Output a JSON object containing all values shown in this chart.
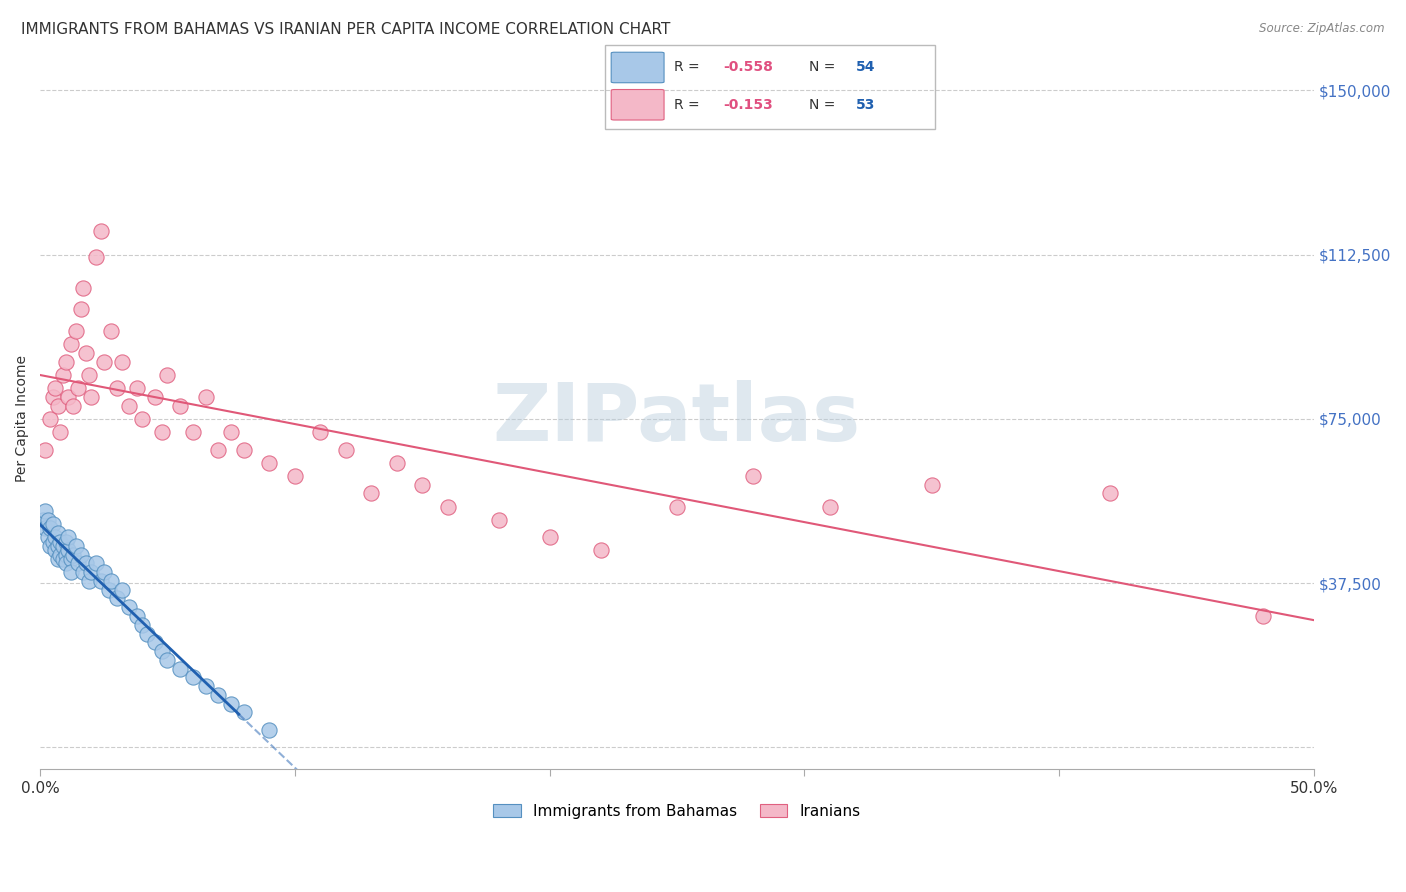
{
  "title": "IMMIGRANTS FROM BAHAMAS VS IRANIAN PER CAPITA INCOME CORRELATION CHART",
  "source": "Source: ZipAtlas.com",
  "ylabel": "Per Capita Income",
  "watermark": "ZIPatlas",
  "xlim": [
    0.0,
    0.5
  ],
  "ylim": [
    -5000,
    155000
  ],
  "yticks": [
    0,
    37500,
    75000,
    112500,
    150000
  ],
  "ytick_labels": [
    "",
    "$37,500",
    "$75,000",
    "$112,500",
    "$150,000"
  ],
  "blue_color": "#a8c8e8",
  "pink_color": "#f4b8c8",
  "blue_edge": "#5590c0",
  "pink_edge": "#e06080",
  "trend_blue": "#2060b0",
  "trend_pink": "#e05878",
  "blue_label": "Immigrants from Bahamas",
  "pink_label": "Iranians",
  "blue_x": [
    0.001,
    0.002,
    0.002,
    0.003,
    0.003,
    0.004,
    0.004,
    0.005,
    0.005,
    0.006,
    0.006,
    0.007,
    0.007,
    0.007,
    0.008,
    0.008,
    0.009,
    0.009,
    0.01,
    0.01,
    0.01,
    0.011,
    0.011,
    0.012,
    0.012,
    0.013,
    0.014,
    0.015,
    0.016,
    0.017,
    0.018,
    0.019,
    0.02,
    0.022,
    0.024,
    0.025,
    0.027,
    0.028,
    0.03,
    0.032,
    0.035,
    0.038,
    0.04,
    0.042,
    0.045,
    0.048,
    0.05,
    0.055,
    0.06,
    0.065,
    0.07,
    0.075,
    0.08,
    0.09
  ],
  "blue_y": [
    52000,
    50000,
    54000,
    48000,
    52000,
    46000,
    50000,
    47000,
    51000,
    45000,
    48000,
    46000,
    49000,
    43000,
    44000,
    47000,
    43000,
    46000,
    44000,
    47000,
    42000,
    45000,
    48000,
    43000,
    40000,
    44000,
    46000,
    42000,
    44000,
    40000,
    42000,
    38000,
    40000,
    42000,
    38000,
    40000,
    36000,
    38000,
    34000,
    36000,
    32000,
    30000,
    28000,
    26000,
    24000,
    22000,
    20000,
    18000,
    16000,
    14000,
    12000,
    10000,
    8000,
    4000
  ],
  "pink_x": [
    0.002,
    0.004,
    0.005,
    0.006,
    0.007,
    0.008,
    0.009,
    0.01,
    0.011,
    0.012,
    0.013,
    0.014,
    0.015,
    0.016,
    0.017,
    0.018,
    0.019,
    0.02,
    0.022,
    0.024,
    0.025,
    0.028,
    0.03,
    0.032,
    0.035,
    0.038,
    0.04,
    0.045,
    0.048,
    0.05,
    0.055,
    0.06,
    0.065,
    0.07,
    0.075,
    0.08,
    0.09,
    0.1,
    0.11,
    0.12,
    0.13,
    0.14,
    0.15,
    0.16,
    0.18,
    0.2,
    0.22,
    0.25,
    0.28,
    0.31,
    0.35,
    0.42,
    0.48
  ],
  "pink_y": [
    68000,
    75000,
    80000,
    82000,
    78000,
    72000,
    85000,
    88000,
    80000,
    92000,
    78000,
    95000,
    82000,
    100000,
    105000,
    90000,
    85000,
    80000,
    112000,
    118000,
    88000,
    95000,
    82000,
    88000,
    78000,
    82000,
    75000,
    80000,
    72000,
    85000,
    78000,
    72000,
    80000,
    68000,
    72000,
    68000,
    65000,
    62000,
    72000,
    68000,
    58000,
    65000,
    60000,
    55000,
    52000,
    48000,
    45000,
    55000,
    62000,
    55000,
    60000,
    58000,
    30000
  ],
  "title_fontsize": 11,
  "axis_label_fontsize": 10,
  "tick_fontsize": 10,
  "background_color": "#ffffff",
  "grid_color": "#cccccc",
  "ytick_color": "#4472c4",
  "title_color": "#333333",
  "source_color": "#888888"
}
